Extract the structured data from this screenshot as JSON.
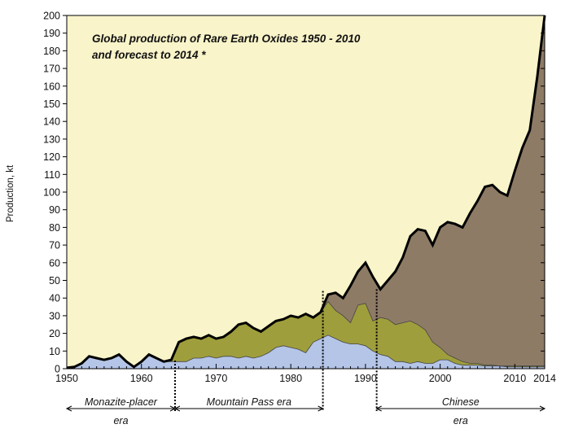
{
  "chart_data": {
    "type": "area",
    "title_lines": [
      "Global production of Rare Earth Oxides 1950 - 2010",
      "and forecast to 2014 *"
    ],
    "ylabel": "Production, kt",
    "xlabel": "",
    "xlim": [
      1950,
      2014
    ],
    "ylim": [
      0,
      200
    ],
    "x_ticks": [
      1950,
      1960,
      1970,
      1980,
      1990,
      2000,
      2010,
      2014
    ],
    "y_ticks": [
      0,
      10,
      20,
      30,
      40,
      50,
      60,
      70,
      80,
      90,
      100,
      110,
      120,
      130,
      140,
      150,
      160,
      170,
      180,
      190,
      200
    ],
    "grid": false,
    "legend": "none",
    "colors": {
      "background": "#f9f4c9",
      "total": "#8e7b66",
      "middle": "#9f9e3c",
      "bottom": "#b4c5e8",
      "outline": "#000000"
    },
    "series": [
      {
        "x": [
          1950,
          1951,
          1952,
          1953,
          1954,
          1955,
          1956,
          1957,
          1958,
          1959,
          1960,
          1961,
          1962,
          1963,
          1964,
          1965,
          1966,
          1967,
          1968,
          1969,
          1970,
          1971,
          1972,
          1973,
          1974,
          1975,
          1976,
          1977,
          1978,
          1979,
          1980,
          1981,
          1982,
          1983,
          1984,
          1985,
          1986,
          1987,
          1988,
          1989,
          1990,
          1991,
          1992,
          1993,
          1994,
          1995,
          1996,
          1997,
          1998,
          1999,
          2000,
          2001,
          2002,
          2003,
          2004,
          2005,
          2006,
          2007,
          2008,
          2009,
          2010,
          2011,
          2012,
          2013,
          2014
        ],
        "values": [
          0.5,
          1,
          3,
          7,
          6,
          5,
          6,
          8,
          4,
          1,
          4,
          8,
          6,
          4,
          5,
          15,
          17,
          18,
          17,
          19,
          17,
          18,
          21,
          25,
          26,
          23,
          21,
          24,
          27,
          28,
          30,
          29,
          31,
          29,
          32,
          42,
          43,
          40,
          47,
          55,
          60,
          52,
          45,
          50,
          55,
          63,
          75,
          79,
          78,
          70,
          80,
          83,
          82,
          80,
          88,
          95,
          103,
          104,
          100,
          98,
          112,
          125,
          135,
          165,
          200
        ]
      },
      {
        "x": [
          1950,
          1951,
          1952,
          1953,
          1954,
          1955,
          1956,
          1957,
          1958,
          1959,
          1960,
          1961,
          1962,
          1963,
          1964,
          1965,
          1966,
          1967,
          1968,
          1969,
          1970,
          1971,
          1972,
          1973,
          1974,
          1975,
          1976,
          1977,
          1978,
          1979,
          1980,
          1981,
          1982,
          1983,
          1984,
          1985,
          1986,
          1987,
          1988,
          1989,
          1990,
          1991,
          1992,
          1993,
          1994,
          1995,
          1996,
          1997,
          1998,
          1999,
          2000,
          2001,
          2002,
          2003,
          2004,
          2005,
          2006,
          2007,
          2008,
          2009,
          2010,
          2011,
          2012,
          2013,
          2014
        ],
        "values": [
          0.5,
          1,
          3,
          7,
          6,
          5,
          6,
          8,
          4,
          1,
          4,
          8,
          6,
          4,
          5,
          15,
          17,
          18,
          17,
          19,
          17,
          18,
          21,
          25,
          26,
          23,
          21,
          24,
          27,
          28,
          30,
          29,
          31,
          29,
          32,
          38,
          33,
          30,
          26,
          36,
          37,
          27,
          29,
          28,
          25,
          26,
          27,
          25,
          22,
          15,
          12,
          8,
          6,
          4,
          3,
          3,
          2,
          2,
          1.5,
          1.5,
          1.5,
          1.5,
          1.5,
          1.5,
          1.5
        ]
      },
      {
        "x": [
          1950,
          1951,
          1952,
          1953,
          1954,
          1955,
          1956,
          1957,
          1958,
          1959,
          1960,
          1961,
          1962,
          1963,
          1964,
          1965,
          1966,
          1967,
          1968,
          1969,
          1970,
          1971,
          1972,
          1973,
          1974,
          1975,
          1976,
          1977,
          1978,
          1979,
          1980,
          1981,
          1982,
          1983,
          1984,
          1985,
          1986,
          1987,
          1988,
          1989,
          1990,
          1991,
          1992,
          1993,
          1994,
          1995,
          1996,
          1997,
          1998,
          1999,
          2000,
          2001,
          2002,
          2003,
          2004,
          2005,
          2006,
          2007,
          2008,
          2009,
          2010,
          2011,
          2012,
          2013,
          2014
        ],
        "values": [
          0.5,
          1,
          3,
          7,
          6,
          5,
          6,
          8,
          4,
          1,
          4,
          8,
          6,
          4,
          4,
          4,
          4,
          6,
          6,
          7,
          6,
          7,
          7,
          6,
          7,
          6,
          7,
          9,
          12,
          13,
          12,
          11,
          9,
          15,
          17,
          19,
          17,
          15,
          14,
          14,
          13,
          10,
          8,
          7,
          4,
          4,
          3,
          4,
          3,
          3,
          5,
          5,
          3,
          2,
          2,
          2,
          1.5,
          1.5,
          1.5,
          1,
          1,
          1,
          1,
          1,
          1
        ]
      }
    ],
    "markers": [
      1964.5,
      1984.3,
      1991.5
    ],
    "eras": [
      {
        "from": 1950,
        "to": 1964.5,
        "line1": "Monazite-placer",
        "line2": "era"
      },
      {
        "from": 1964.5,
        "to": 1984.3,
        "line1": "Mountain Pass era",
        "line2": ""
      },
      {
        "from": 1991.5,
        "to": 2014,
        "line1": "Chinese",
        "line2": "era"
      }
    ]
  }
}
